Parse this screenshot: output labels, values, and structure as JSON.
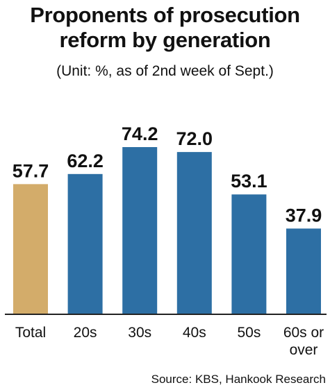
{
  "title_line1": "Proponents of prosecution",
  "title_line2": "reform by generation",
  "subtitle": "(Unit: %, as of 2nd week of Sept.)",
  "source": "Source: KBS, Hankook Research",
  "colors": {
    "highlight": "#D3AC6A",
    "bar": "#2D6FA4",
    "axis": "#222222"
  },
  "chart_data": {
    "type": "bar",
    "categories": [
      "Total",
      "20s",
      "30s",
      "40s",
      "50s",
      "60s or over"
    ],
    "category_lines": [
      [
        "Total"
      ],
      [
        "20s"
      ],
      [
        "30s"
      ],
      [
        "40s"
      ],
      [
        "50s"
      ],
      [
        "60s or",
        "over"
      ]
    ],
    "values": [
      57.7,
      62.2,
      74.2,
      72.0,
      53.1,
      37.9
    ],
    "value_labels": [
      "57.7",
      "62.2",
      "74.2",
      "72.0",
      "53.1",
      "37.9"
    ],
    "highlight_index": 0,
    "title": "Proponents of prosecution reform by generation",
    "subtitle": "(Unit: %, as of 2nd week of Sept.)",
    "xlabel": "",
    "ylabel": "",
    "ylim": [
      0,
      74.2
    ]
  }
}
